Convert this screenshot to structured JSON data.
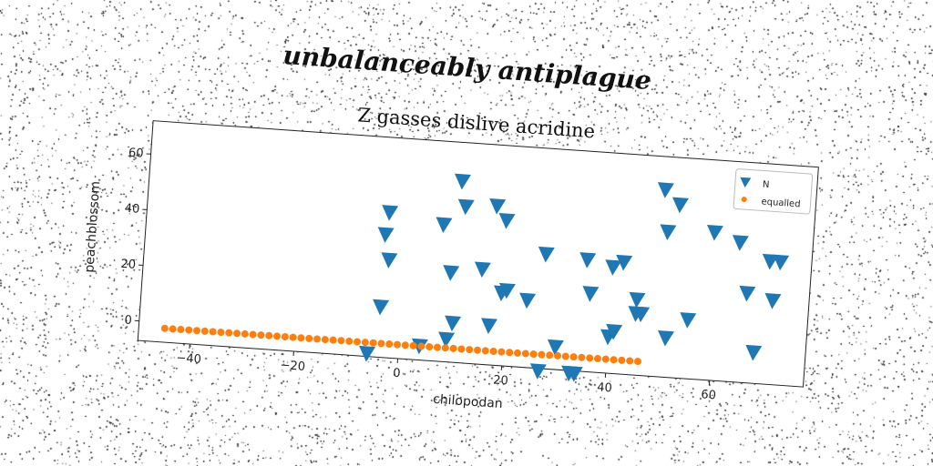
{
  "supertitle": "unbalanceably antiplague",
  "chart_data": {
    "type": "scatter",
    "title": "Z gasses dislive acridine",
    "xlabel": "chilopodan",
    "ylabel": "peachblossom",
    "xlim": [
      -50,
      78
    ],
    "ylim": [
      -7,
      72
    ],
    "xticks": [
      -40,
      -20,
      0,
      20,
      40,
      60
    ],
    "yticks": [
      0,
      20,
      40,
      60
    ],
    "grid": false,
    "legend_position": "top-right",
    "series": [
      {
        "name": "N",
        "marker": "triangle-down",
        "color": "#1f77b4",
        "points": [
          [
            -3.5,
            45
          ],
          [
            -4,
            37
          ],
          [
            -3,
            28
          ],
          [
            -4,
            11
          ],
          [
            -6,
            -6
          ],
          [
            4,
            -2
          ],
          [
            7,
            42
          ],
          [
            9,
            25
          ],
          [
            9,
            1
          ],
          [
            10,
            7
          ],
          [
            10,
            58
          ],
          [
            11,
            49
          ],
          [
            15,
            27
          ],
          [
            17,
            50
          ],
          [
            17,
            7
          ],
          [
            19,
            45
          ],
          [
            19,
            19
          ],
          [
            20,
            20
          ],
          [
            24,
            17
          ],
          [
            27,
            34
          ],
          [
            27,
            -8
          ],
          [
            30,
            1
          ],
          [
            33,
            -8
          ],
          [
            34,
            -8
          ],
          [
            35,
            33
          ],
          [
            36,
            21
          ],
          [
            40,
            31
          ],
          [
            40,
            6
          ],
          [
            41,
            8
          ],
          [
            42,
            33
          ],
          [
            45,
            20
          ],
          [
            45,
            15
          ],
          [
            46,
            15
          ],
          [
            49,
            60
          ],
          [
            50,
            45
          ],
          [
            51,
            7
          ],
          [
            52,
            55
          ],
          [
            55,
            14
          ],
          [
            59,
            46
          ],
          [
            64,
            43
          ],
          [
            66,
            25
          ],
          [
            68,
            4
          ],
          [
            70,
            37
          ],
          [
            71,
            23
          ],
          [
            72,
            37
          ]
        ]
      },
      {
        "name": "equalled",
        "marker": "circle",
        "color": "#ff7f0e",
        "x_start": -45,
        "x_end": 46,
        "count": 60,
        "y": -2
      }
    ]
  }
}
